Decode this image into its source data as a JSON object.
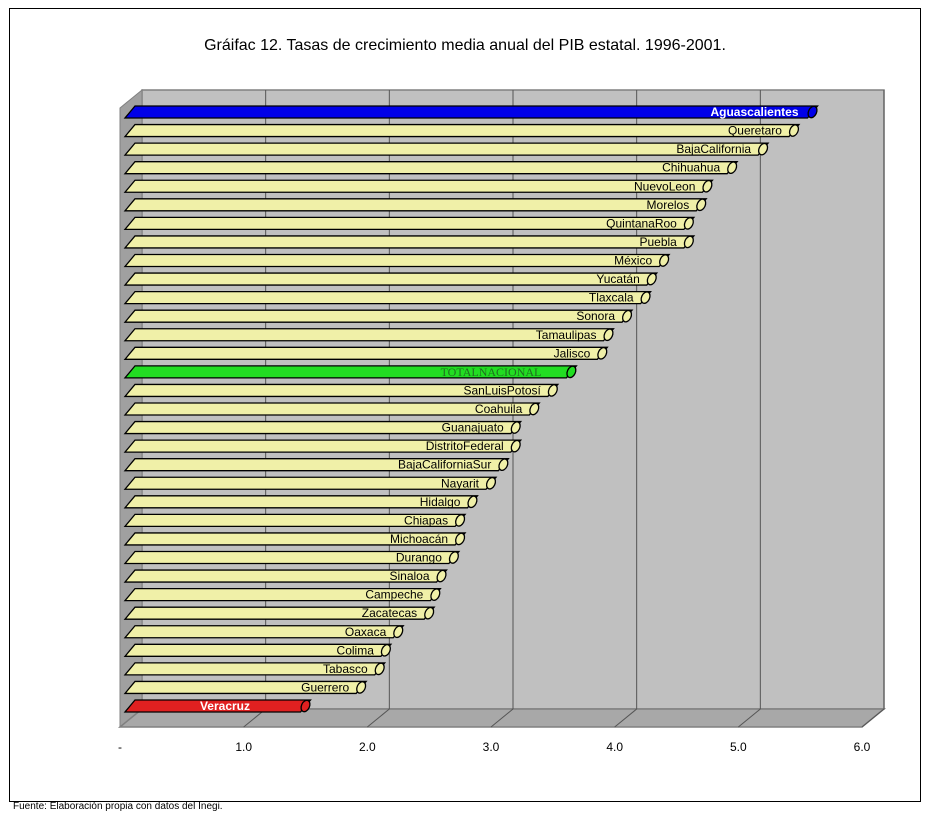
{
  "chart_data": {
    "type": "bar",
    "orientation": "horizontal",
    "title": "Gráifac 12. Tasas de crecimiento media anual del PIB estatal. 1996-2001.",
    "source": "Fuente: Elaboración propia  con datos del Inegi.",
    "x_ticks": [
      "-",
      "1.0",
      "2.0",
      "3.0",
      "4.0",
      "5.0",
      "6.0"
    ],
    "xlim": [
      0,
      6
    ],
    "grid": "vertical",
    "categories": [
      "Aguascalientes",
      "Queretaro",
      "BajaCalifornia",
      "Chihuahua",
      "NuevoLeon",
      "Morelos",
      "QuintanaRoo",
      "Puebla",
      "México",
      "Yucatán",
      "Tlaxcala",
      "Sonora",
      "Tamaulipas",
      "Jalisco",
      "TOTALNACIONAL",
      "SanLuisPotosí",
      "Coahuila",
      "Guanajuato",
      "DistritoFederal",
      "BajaCaliforniaSur",
      "Nayarit",
      "Hidalgo",
      "Chiapas",
      "Michoacán",
      "Durango",
      "Sinaloa",
      "Campeche",
      "Zacatecas",
      "Oaxaca",
      "Colima",
      "Tabasco",
      "Guerrero",
      "Veracruz"
    ],
    "values": [
      5.6,
      5.45,
      5.2,
      4.95,
      4.75,
      4.7,
      4.6,
      4.6,
      4.4,
      4.3,
      4.25,
      4.1,
      3.95,
      3.9,
      3.65,
      3.5,
      3.35,
      3.2,
      3.2,
      3.1,
      3.0,
      2.85,
      2.75,
      2.75,
      2.7,
      2.6,
      2.55,
      2.5,
      2.25,
      2.15,
      2.1,
      1.95,
      1.5
    ],
    "colors": {
      "default_bar": "#f0f0a8",
      "highlight_top": "#0000e8",
      "highlight_total": "#22dd22",
      "highlight_bottom": "#e02020",
      "plot_background": "#c0c0c0"
    }
  }
}
